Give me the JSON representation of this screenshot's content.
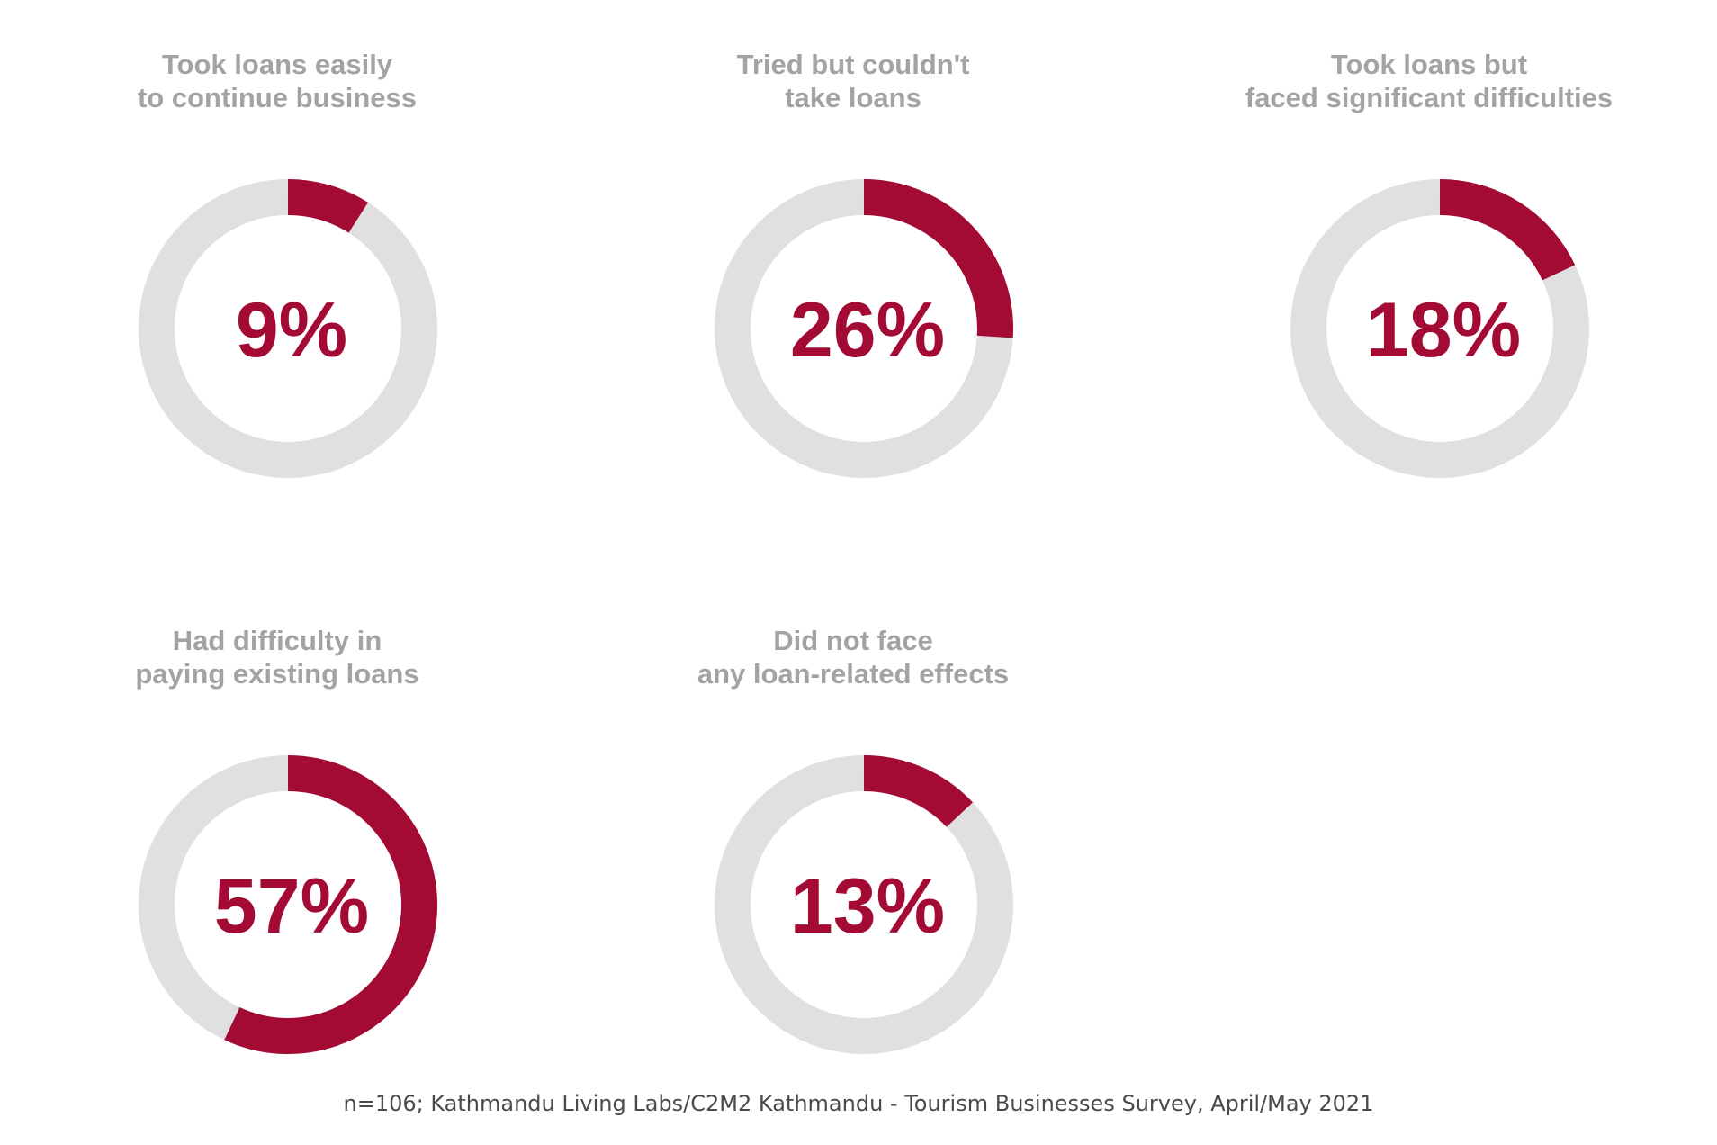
{
  "chart_data": {
    "type": "pie",
    "style": "donut",
    "items": [
      {
        "title_lines": [
          "Took loans easily",
          "to continue business"
        ],
        "value": 9,
        "label": "9%"
      },
      {
        "title_lines": [
          "Tried but couldn't",
          "take loans"
        ],
        "value": 26,
        "label": "26%"
      },
      {
        "title_lines": [
          "Took loans but",
          "faced significant difficulties"
        ],
        "value": 18,
        "label": "18%"
      },
      {
        "title_lines": [
          "Had difficulty in",
          "paying existing loans"
        ],
        "value": 57,
        "label": "57%"
      },
      {
        "title_lines": [
          "Did not face",
          "any loan-related effects"
        ],
        "value": 13,
        "label": "13%"
      }
    ],
    "max": 100
  },
  "colors": {
    "filled": "#a30b35",
    "track": "#e0e0e0",
    "title": "#a3a3a3",
    "value": "#a30b35"
  },
  "source_note": "n=106; Kathmandu Living Labs/C2M2 Kathmandu - Tourism Businesses Survey, April/May 2021"
}
